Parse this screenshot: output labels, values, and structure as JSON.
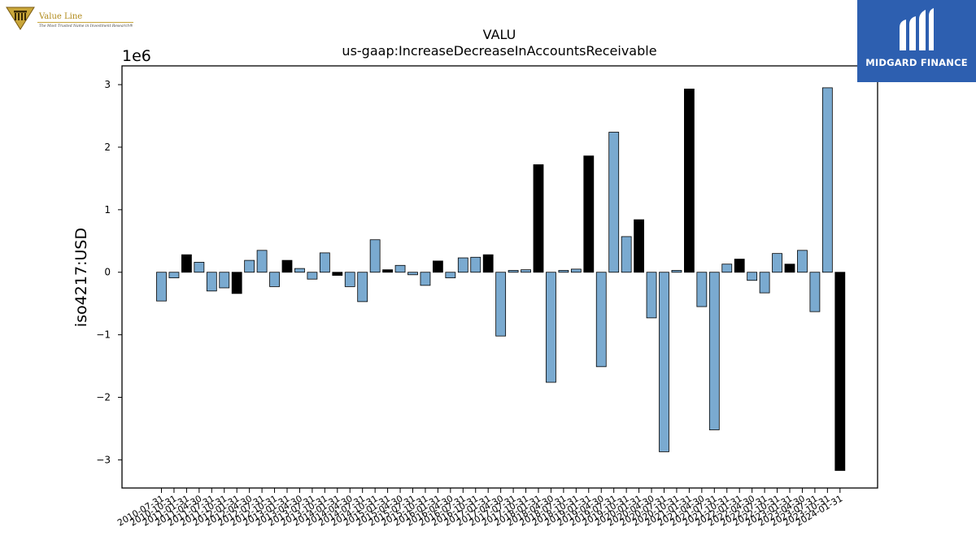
{
  "logos": {
    "value_line": {
      "name": "Value Line",
      "tagline": "The Most Trusted Name in Investment Research®"
    },
    "midgard": {
      "name": "MIDGARD FINANCE"
    }
  },
  "colors": {
    "positive_bar": "#7aaad0",
    "highlight_bar": "#000000",
    "bar_edge": "#000000"
  },
  "chart_data": {
    "type": "bar",
    "title": "VALU",
    "subtitle": "us-gaap:IncreaseDecreaseInAccountsReceivable",
    "ylabel": "iso4217:USD",
    "xlabel": "",
    "scale_label": "1e6",
    "ylim": [
      -3.45,
      3.3
    ],
    "yticks": [
      -3,
      -2,
      -1,
      0,
      1,
      2,
      3
    ],
    "ytick_labels": [
      "−3",
      "−2",
      "−1",
      "0",
      "1",
      "2",
      "3"
    ],
    "grid": false,
    "categories": [
      "2010-07-31",
      "2010-10-31",
      "2011-01-31",
      "2011-04-30",
      "2011-07-31",
      "2011-10-31",
      "2012-01-31",
      "2012-04-30",
      "2012-07-31",
      "2012-10-31",
      "2013-01-31",
      "2013-04-30",
      "2013-07-31",
      "2013-10-31",
      "2014-01-31",
      "2014-04-30",
      "2014-07-31",
      "2014-10-31",
      "2015-01-31",
      "2015-04-30",
      "2015-07-31",
      "2015-10-31",
      "2016-01-31",
      "2016-04-30",
      "2016-07-31",
      "2016-10-31",
      "2017-01-31",
      "2017-04-30",
      "2017-07-31",
      "2017-10-31",
      "2018-01-31",
      "2018-04-30",
      "2018-07-31",
      "2018-10-31",
      "2019-01-31",
      "2019-04-30",
      "2019-07-31",
      "2019-10-31",
      "2020-01-31",
      "2020-04-30",
      "2020-07-31",
      "2020-10-31",
      "2021-01-31",
      "2021-04-30",
      "2021-07-31",
      "2021-10-31",
      "2022-01-31",
      "2022-04-30",
      "2022-07-31",
      "2022-10-31",
      "2023-01-31",
      "2023-04-30",
      "2023-07-31",
      "2023-10-31",
      "2024-01-31"
    ],
    "values": [
      -0.46,
      -0.09,
      0.28,
      0.16,
      -0.3,
      -0.25,
      -0.34,
      0.19,
      0.35,
      -0.23,
      0.19,
      0.06,
      -0.11,
      0.31,
      -0.05,
      -0.23,
      -0.47,
      0.52,
      0.04,
      0.11,
      -0.04,
      -0.21,
      0.18,
      -0.09,
      0.23,
      0.24,
      0.28,
      -1.02,
      0.03,
      0.04,
      1.72,
      -1.76,
      0.03,
      0.05,
      1.86,
      -1.51,
      2.24,
      0.57,
      0.84,
      -0.73,
      -2.87,
      0.03,
      2.93,
      -0.55,
      -2.52,
      0.13,
      0.21,
      -0.13,
      -0.33,
      0.3,
      0.13,
      0.35,
      -0.63,
      2.95,
      -3.17
    ],
    "highlight": [
      false,
      false,
      true,
      false,
      false,
      false,
      true,
      false,
      false,
      false,
      true,
      false,
      false,
      false,
      true,
      false,
      false,
      false,
      true,
      false,
      false,
      false,
      true,
      false,
      false,
      false,
      true,
      false,
      false,
      false,
      true,
      false,
      false,
      false,
      true,
      false,
      false,
      false,
      true,
      false,
      false,
      false,
      true,
      false,
      false,
      false,
      true,
      false,
      false,
      false,
      true,
      false,
      false,
      false,
      true
    ]
  }
}
